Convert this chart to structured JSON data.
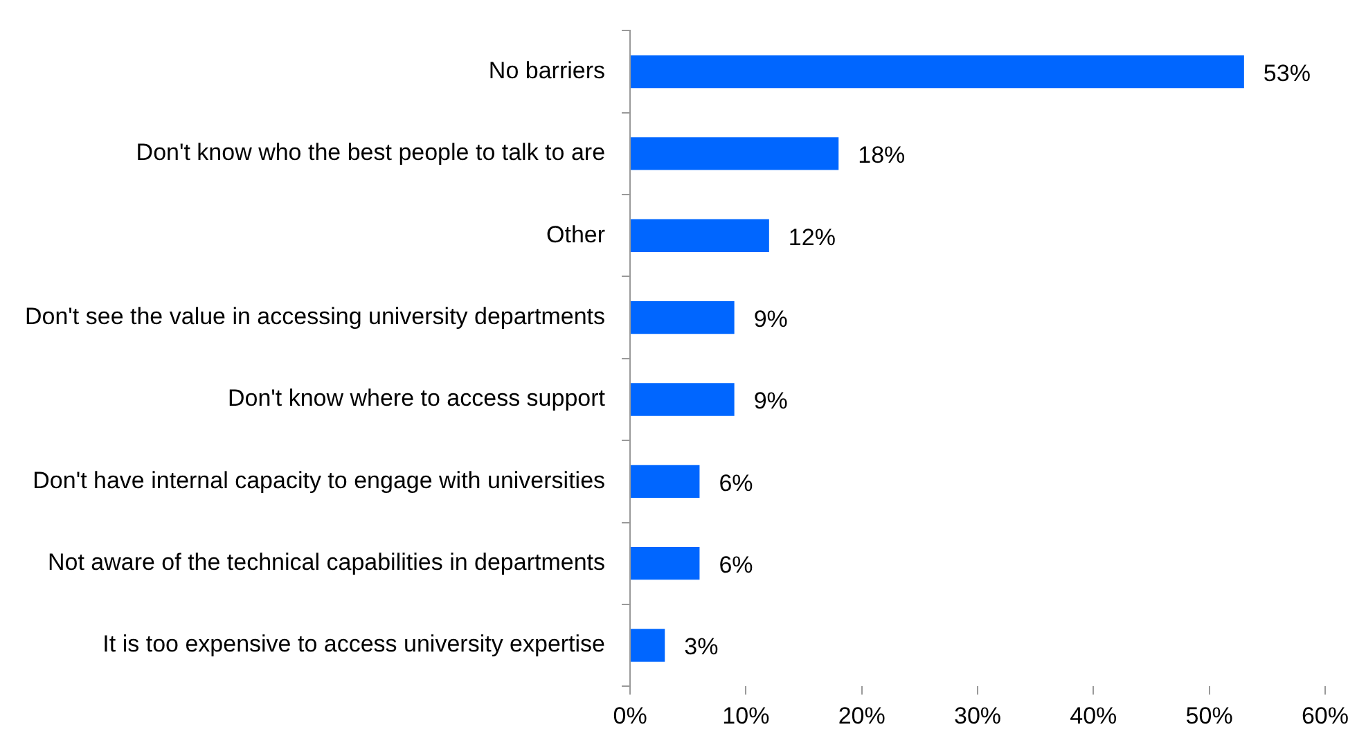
{
  "chart_data": {
    "type": "bar",
    "orientation": "horizontal",
    "categories": [
      "No barriers",
      "Don't know who the best people to talk to are",
      "Other",
      "Don't see the value in accessing university departments",
      "Don't know where to access support",
      "Don't have internal capacity to engage with universities",
      "Not aware of the technical capabilities in departments",
      "It is too expensive to access university expertise"
    ],
    "values": [
      53,
      18,
      12,
      9,
      9,
      6,
      6,
      3
    ],
    "value_labels": [
      "53%",
      "18%",
      "12%",
      "9%",
      "9%",
      "6%",
      "6%",
      "3%"
    ],
    "color": "#0066ff",
    "xlim": [
      0,
      60
    ],
    "xticks": [
      {
        "value": 0,
        "label": "0%"
      },
      {
        "value": 10,
        "label": "10%"
      },
      {
        "value": 20,
        "label": "20%"
      },
      {
        "value": 30,
        "label": "30%"
      },
      {
        "value": 40,
        "label": "40%"
      },
      {
        "value": 50,
        "label": "50%"
      },
      {
        "value": 60,
        "label": "60%"
      }
    ],
    "grid": false,
    "legend": false
  }
}
